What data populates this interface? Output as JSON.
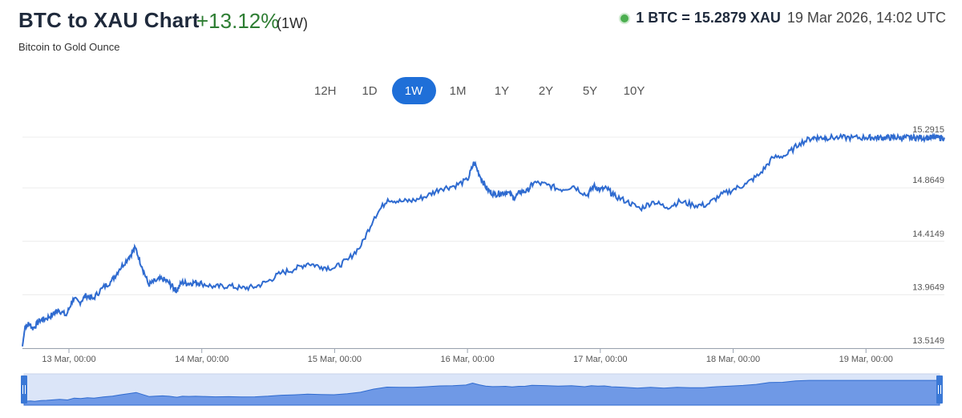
{
  "header": {
    "title": "BTC to XAU Chart",
    "change": "+13.12%",
    "period": "(1W)",
    "rate": "1 BTC = 15.2879 XAU",
    "datetime": "19 Mar 2026, 14:02 UTC",
    "subtitle": "Bitcoin to Gold Ounce"
  },
  "periods": [
    {
      "label": "12H",
      "active": false
    },
    {
      "label": "1D",
      "active": false
    },
    {
      "label": "1W",
      "active": true
    },
    {
      "label": "1M",
      "active": false
    },
    {
      "label": "1Y",
      "active": false
    },
    {
      "label": "2Y",
      "active": false
    },
    {
      "label": "5Y",
      "active": false
    },
    {
      "label": "10Y",
      "active": false
    }
  ],
  "colors": {
    "line": "#2f6bd0",
    "active": "#1f6fd8",
    "positive": "#2d7d32",
    "navigator_fill": "#6f99e6",
    "navigator_bg": "#dbe5f8"
  },
  "chart_data": {
    "type": "line",
    "title": "",
    "xlabel": "",
    "ylabel": "",
    "x_ticks": [
      "13 Mar, 00:00",
      "14 Mar, 00:00",
      "15 Mar, 00:00",
      "16 Mar, 00:00",
      "17 Mar, 00:00",
      "18 Mar, 00:00",
      "19 Mar, 00:00"
    ],
    "y_ticks": [
      "15.2915",
      "14.8649",
      "14.4149",
      "13.9649",
      "13.5149"
    ],
    "xlim": [
      -0.35,
      6.59
    ],
    "ylim": [
      13.5149,
      15.2915
    ],
    "grid": "horizontal",
    "series": [
      {
        "x": [
          -0.35,
          -0.33,
          -0.3,
          -0.27,
          -0.22,
          -0.18,
          -0.12,
          -0.08,
          -0.02,
          0.03,
          0.08,
          0.13,
          0.18,
          0.25,
          0.32,
          0.38,
          0.45,
          0.5,
          0.55,
          0.6,
          0.65,
          0.7,
          0.75,
          0.79,
          0.81,
          0.85,
          0.9,
          0.95,
          1.0,
          1.1,
          1.2,
          1.3,
          1.4,
          1.5,
          1.6,
          1.7,
          1.8,
          1.9,
          2.0,
          2.1,
          2.2,
          2.3,
          2.4,
          2.5,
          2.6,
          2.7,
          2.8,
          2.9,
          3.0,
          3.05,
          3.1,
          3.15,
          3.2,
          3.25,
          3.3,
          3.35,
          3.4,
          3.45,
          3.5,
          3.6,
          3.7,
          3.8,
          3.9,
          3.95,
          4.0,
          4.05,
          4.1,
          4.2,
          4.3,
          4.4,
          4.5,
          4.6,
          4.7,
          4.8,
          4.9,
          5.0,
          5.1,
          5.2,
          5.3,
          5.4,
          5.5,
          5.6,
          5.65,
          5.7,
          5.8,
          5.9,
          6.0,
          6.05,
          6.1,
          6.15,
          6.2,
          6.25,
          6.3,
          6.35,
          6.4,
          6.45,
          6.5,
          6.55,
          6.59
        ],
        "y": [
          13.53,
          13.7,
          13.72,
          13.68,
          13.75,
          13.76,
          13.8,
          13.84,
          13.79,
          13.93,
          13.9,
          13.96,
          13.93,
          14.02,
          14.08,
          14.18,
          14.28,
          14.36,
          14.2,
          14.05,
          14.08,
          14.1,
          14.07,
          14.02,
          14.0,
          14.07,
          14.06,
          14.07,
          14.06,
          14.03,
          14.04,
          14.02,
          14.03,
          14.08,
          14.15,
          14.18,
          14.23,
          14.2,
          14.19,
          14.26,
          14.38,
          14.62,
          14.77,
          14.75,
          14.76,
          14.8,
          14.86,
          14.88,
          14.93,
          15.08,
          14.95,
          14.85,
          14.81,
          14.82,
          14.83,
          14.78,
          14.83,
          14.84,
          14.91,
          14.89,
          14.85,
          14.88,
          14.8,
          14.88,
          14.85,
          14.86,
          14.8,
          14.75,
          14.69,
          14.75,
          14.7,
          14.75,
          14.72,
          14.72,
          14.8,
          14.85,
          14.9,
          14.98,
          15.12,
          15.14,
          15.24,
          15.2879,
          15.2879,
          15.2879,
          15.2879,
          15.2879,
          15.2879,
          15.2879,
          15.2879,
          15.2879,
          15.2879,
          15.2879,
          15.2879,
          15.2879,
          15.2879,
          15.2879,
          15.2879,
          15.2879,
          15.2879
        ]
      }
    ]
  }
}
